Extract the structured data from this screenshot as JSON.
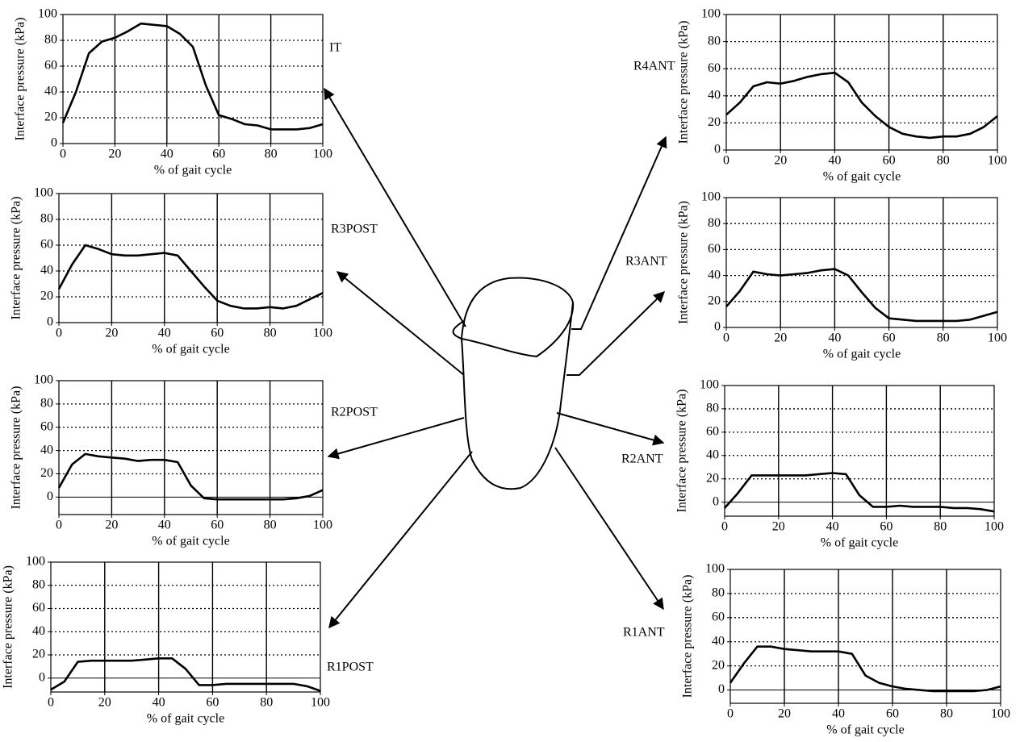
{
  "chart_data": [
    {
      "type": "line",
      "label": "IT",
      "xlabel": "% of gait cycle",
      "ylabel": "Interface pressure (kPa)",
      "x": [
        0,
        5,
        10,
        15,
        20,
        25,
        30,
        35,
        40,
        45,
        50,
        55,
        60,
        65,
        70,
        75,
        80,
        85,
        90,
        95,
        100
      ],
      "series": [
        {
          "color": "#000000",
          "values": [
            16,
            40,
            70,
            79,
            82,
            87,
            93,
            92,
            91,
            85,
            75,
            45,
            22,
            19,
            15,
            14,
            11,
            11,
            11,
            12,
            15
          ]
        }
      ],
      "xlim": [
        0,
        100
      ],
      "ylim": [
        0,
        100
      ],
      "xticks": [
        0,
        20,
        40,
        60,
        80,
        100
      ],
      "yticks": [
        0,
        20,
        40,
        60,
        80,
        100
      ]
    },
    {
      "type": "line",
      "label": "R3POST",
      "xlabel": "% of gait cycle",
      "ylabel": "Interface pressure (kPa)",
      "x": [
        0,
        5,
        10,
        15,
        20,
        25,
        30,
        35,
        40,
        45,
        50,
        55,
        60,
        65,
        70,
        75,
        80,
        85,
        90,
        95,
        100
      ],
      "series": [
        {
          "color": "#000000",
          "values": [
            26,
            45,
            60,
            57,
            53,
            52,
            52,
            53,
            54,
            52,
            40,
            28,
            17,
            13,
            11,
            11,
            12,
            11,
            13,
            18,
            23
          ]
        }
      ],
      "xlim": [
        0,
        100
      ],
      "ylim": [
        0,
        100
      ],
      "xticks": [
        0,
        20,
        40,
        60,
        80,
        100
      ],
      "yticks": [
        0,
        20,
        40,
        60,
        80,
        100
      ]
    },
    {
      "type": "line",
      "label": "R2POST",
      "xlabel": "% of gait cycle",
      "ylabel": "Interface pressure (kPa)",
      "x": [
        0,
        5,
        10,
        15,
        20,
        25,
        30,
        35,
        40,
        45,
        50,
        55,
        60,
        65,
        70,
        75,
        80,
        85,
        90,
        95,
        100
      ],
      "series": [
        {
          "color": "#000000",
          "values": [
            8,
            28,
            37,
            35,
            34,
            33,
            31,
            32,
            32,
            30,
            10,
            -1,
            -2,
            -2,
            -2,
            -2,
            -2,
            -2,
            -1,
            1,
            6
          ]
        }
      ],
      "xlim": [
        0,
        100
      ],
      "ylim": [
        -15,
        100
      ],
      "xticks": [
        0,
        20,
        40,
        60,
        80,
        100
      ],
      "yticks": [
        0,
        20,
        40,
        60,
        80,
        100
      ]
    },
    {
      "type": "line",
      "label": "R1POST",
      "xlabel": "% of gait cycle",
      "ylabel": "Interface pressure (kPa)",
      "x": [
        0,
        5,
        10,
        15,
        20,
        25,
        30,
        35,
        40,
        45,
        50,
        55,
        60,
        65,
        70,
        75,
        80,
        85,
        90,
        95,
        100
      ],
      "series": [
        {
          "color": "#000000",
          "values": [
            -10,
            -3,
            14,
            15,
            15,
            15,
            15,
            16,
            17,
            17,
            8,
            -6,
            -6,
            -5,
            -5,
            -5,
            -5,
            -5,
            -5,
            -7,
            -11
          ]
        }
      ],
      "xlim": [
        0,
        100
      ],
      "ylim": [
        -12,
        100
      ],
      "xticks": [
        0,
        20,
        40,
        60,
        80,
        100
      ],
      "yticks": [
        0,
        20,
        40,
        60,
        80,
        100
      ]
    },
    {
      "type": "line",
      "label": "R4ANT",
      "xlabel": "% of gait cycle",
      "ylabel": "Interface pressure (kPa)",
      "x": [
        0,
        5,
        10,
        15,
        20,
        25,
        30,
        35,
        40,
        45,
        50,
        55,
        60,
        65,
        70,
        75,
        80,
        85,
        90,
        95,
        100
      ],
      "series": [
        {
          "color": "#000000",
          "values": [
            26,
            35,
            47,
            50,
            49,
            51,
            54,
            56,
            57,
            50,
            35,
            25,
            17,
            12,
            10,
            9,
            10,
            10,
            12,
            17,
            25
          ]
        }
      ],
      "xlim": [
        0,
        100
      ],
      "ylim": [
        0,
        100
      ],
      "xticks": [
        0,
        20,
        40,
        60,
        80,
        100
      ],
      "yticks": [
        0,
        20,
        40,
        60,
        80,
        100
      ]
    },
    {
      "type": "line",
      "label": "R3ANT",
      "xlabel": "% of gait cycle",
      "ylabel": "Interface pressure (kPa)",
      "x": [
        0,
        5,
        10,
        15,
        20,
        25,
        30,
        35,
        40,
        45,
        50,
        55,
        60,
        65,
        70,
        75,
        80,
        85,
        90,
        95,
        100
      ],
      "series": [
        {
          "color": "#000000",
          "values": [
            16,
            28,
            43,
            41,
            40,
            41,
            42,
            44,
            45,
            40,
            27,
            15,
            7,
            6,
            5,
            5,
            5,
            5,
            6,
            9,
            12
          ]
        }
      ],
      "xlim": [
        0,
        100
      ],
      "ylim": [
        0,
        100
      ],
      "xticks": [
        0,
        20,
        40,
        60,
        80,
        100
      ],
      "yticks": [
        0,
        20,
        40,
        60,
        80,
        100
      ]
    },
    {
      "type": "line",
      "label": "R2ANT",
      "xlabel": "% of gait cycle",
      "ylabel": "Interface pressure (kPa)",
      "x": [
        0,
        5,
        10,
        15,
        20,
        25,
        30,
        35,
        40,
        45,
        50,
        55,
        60,
        65,
        70,
        75,
        80,
        85,
        90,
        95,
        100
      ],
      "series": [
        {
          "color": "#000000",
          "values": [
            -5,
            8,
            23,
            23,
            23,
            23,
            23,
            24,
            25,
            24,
            6,
            -4,
            -4,
            -3,
            -4,
            -4,
            -4,
            -5,
            -5,
            -6,
            -8
          ]
        }
      ],
      "xlim": [
        0,
        100
      ],
      "ylim": [
        -12,
        100
      ],
      "xticks": [
        0,
        20,
        40,
        60,
        80,
        100
      ],
      "yticks": [
        0,
        20,
        40,
        60,
        80,
        100
      ]
    },
    {
      "type": "line",
      "label": "R1ANT",
      "xlabel": "% of gait cycle",
      "ylabel": "Interface pressure (kPa)",
      "x": [
        0,
        5,
        10,
        15,
        20,
        25,
        30,
        35,
        40,
        45,
        50,
        55,
        60,
        65,
        70,
        75,
        80,
        85,
        90,
        95,
        100
      ],
      "series": [
        {
          "color": "#000000",
          "values": [
            6,
            22,
            36,
            36,
            34,
            33,
            32,
            32,
            32,
            30,
            12,
            6,
            3,
            1,
            0,
            -1,
            -1,
            -1,
            -1,
            0,
            3
          ]
        }
      ],
      "xlim": [
        0,
        100
      ],
      "ylim": [
        -11,
        100
      ],
      "xticks": [
        0,
        20,
        40,
        60,
        80,
        100
      ],
      "yticks": [
        0,
        20,
        40,
        60,
        80,
        100
      ]
    }
  ]
}
